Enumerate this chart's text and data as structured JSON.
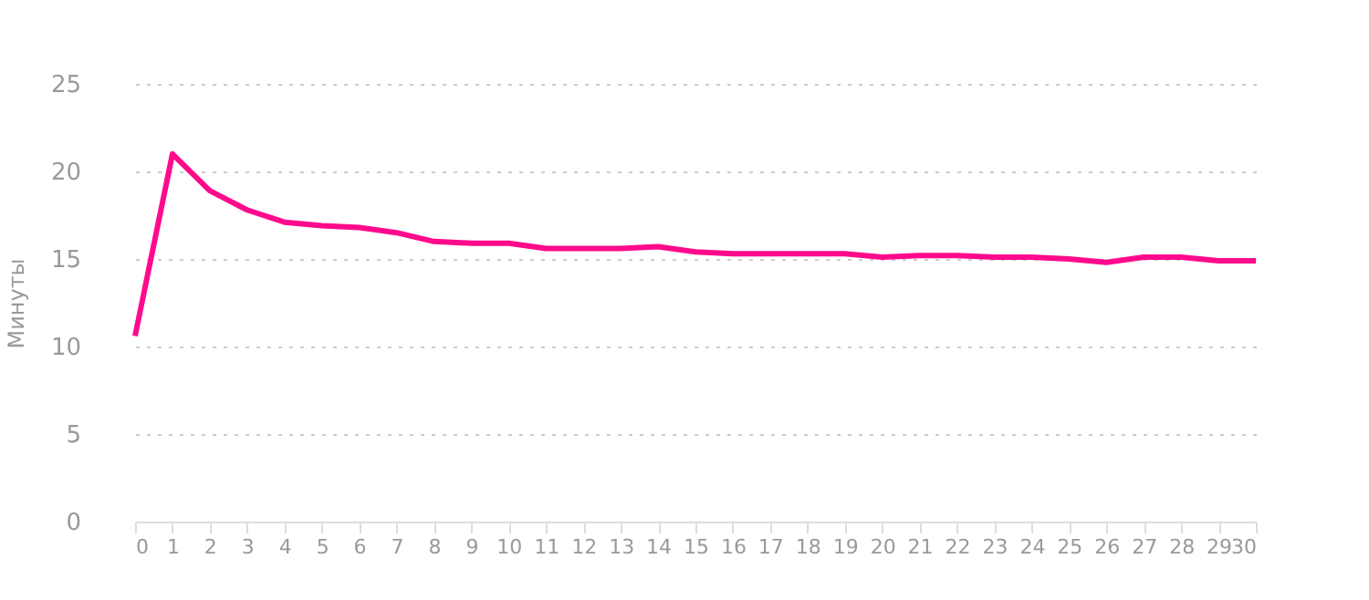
{
  "chart_data": {
    "type": "line",
    "ylabel": "Минуты",
    "x": [
      0,
      1,
      2,
      3,
      4,
      5,
      6,
      7,
      8,
      9,
      10,
      11,
      12,
      13,
      14,
      15,
      16,
      17,
      18,
      19,
      20,
      21,
      22,
      23,
      24,
      25,
      26,
      27,
      28,
      29,
      30
    ],
    "series": [
      {
        "color": "#ff0a8c",
        "values": [
          10.6,
          21.0,
          18.9,
          17.8,
          17.1,
          16.9,
          16.8,
          16.5,
          16.0,
          15.9,
          15.9,
          15.6,
          15.6,
          15.6,
          15.7,
          15.4,
          15.3,
          15.3,
          15.3,
          15.3,
          15.1,
          15.2,
          15.2,
          15.1,
          15.1,
          15.0,
          14.8,
          15.1,
          15.1,
          14.9,
          14.9
        ]
      }
    ],
    "xlim": [
      0,
      30
    ],
    "xticks": [
      0,
      1,
      2,
      3,
      4,
      5,
      6,
      7,
      8,
      9,
      10,
      11,
      12,
      13,
      14,
      15,
      16,
      17,
      18,
      19,
      20,
      21,
      22,
      23,
      24,
      25,
      26,
      27,
      28,
      29,
      30
    ],
    "ylim": [
      0,
      25
    ],
    "yticks": [
      0,
      5,
      10,
      15,
      20,
      25
    ],
    "grid": "y",
    "marker": "none",
    "line_style": "solid"
  }
}
